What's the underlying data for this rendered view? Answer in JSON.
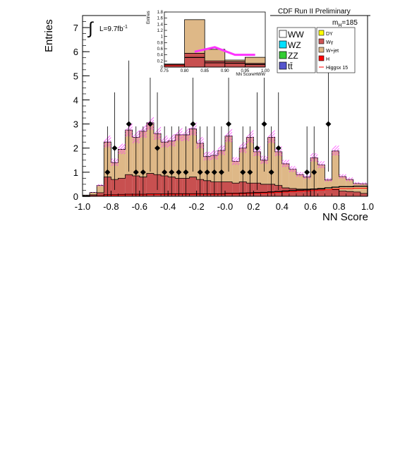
{
  "header": {
    "title": "CDF Run II Preliminary",
    "mass_label": "m",
    "mass_sub": "H",
    "mass_value": "=185",
    "lumi_label": "L=9.7fb",
    "lumi_exp": "-1"
  },
  "legend": {
    "left": [
      {
        "label": "WW",
        "color": "#ffffff"
      },
      {
        "label": "WZ",
        "color": "#00e0ff"
      },
      {
        "label": "ZZ",
        "color": "#33cc33"
      },
      {
        "label": "tt̄",
        "color": "#5555cc"
      }
    ],
    "right": [
      {
        "label": "DY",
        "color": "#ffff00",
        "type": "box"
      },
      {
        "label": "Wγ",
        "color": "#cc5555",
        "type": "box"
      },
      {
        "label": "W+jet",
        "color": "#deb887",
        "type": "box"
      },
      {
        "label": "H",
        "color": "#ff0000",
        "type": "box"
      },
      {
        "label": "Higgsx 15",
        "color": "#ff0000",
        "type": "line"
      }
    ]
  },
  "colors": {
    "wjet": "#deb887",
    "wgamma": "#c85050",
    "higgs": "#ff0000",
    "uncertainty": "#ff33ff",
    "data": "#000000"
  },
  "chart_data": {
    "type": "bar",
    "xlabel": "NN Score",
    "ylabel": "Entries",
    "xlim": [
      -1.0,
      1.0
    ],
    "ylim": [
      0,
      7.5
    ],
    "x_ticks": [
      "-1.0",
      "-0.8",
      "-0.6",
      "-0.4",
      "-0.2",
      "-0.0",
      "0.2",
      "0.4",
      "0.6",
      "0.8",
      "1.0"
    ],
    "y_ticks": [
      "0",
      "1",
      "2",
      "3",
      "4",
      "5",
      "6",
      "7"
    ],
    "bin_edges": [
      -1.0,
      -0.95,
      -0.9,
      -0.85,
      -0.8,
      -0.75,
      -0.7,
      -0.65,
      -0.6,
      -0.55,
      -0.5,
      -0.45,
      -0.4,
      -0.35,
      -0.3,
      -0.25,
      -0.2,
      -0.15,
      -0.1,
      -0.05,
      0.0,
      0.05,
      0.1,
      0.15,
      0.2,
      0.25,
      0.3,
      0.35,
      0.4,
      0.45,
      0.5,
      0.55,
      0.6,
      0.65,
      0.7,
      0.75,
      0.8,
      0.85,
      0.9,
      0.95,
      1.0
    ],
    "series": [
      {
        "name": "Wγ",
        "values": [
          0.02,
          0.06,
          0.15,
          0.8,
          0.7,
          0.75,
          0.9,
          0.85,
          0.8,
          0.95,
          0.9,
          0.85,
          0.8,
          0.75,
          0.75,
          0.8,
          0.7,
          0.65,
          0.6,
          0.6,
          0.6,
          0.55,
          0.6,
          0.55,
          0.55,
          0.5,
          0.5,
          0.45,
          0.35,
          0.32,
          0.3,
          0.3,
          0.3,
          0.3,
          0.28,
          0.28,
          0.22,
          0.2,
          0.18,
          0.12
        ]
      },
      {
        "name": "W+jet",
        "values": [
          0.03,
          0.1,
          0.3,
          1.45,
          0.7,
          1.2,
          1.85,
          1.6,
          1.9,
          2.1,
          1.7,
          1.4,
          1.5,
          1.8,
          1.8,
          2.0,
          1.5,
          1.0,
          1.1,
          1.3,
          1.9,
          0.9,
          1.4,
          1.9,
          1.3,
          1.0,
          1.95,
          1.4,
          1.0,
          0.8,
          0.6,
          0.5,
          1.3,
          1.0,
          0.4,
          1.6,
          0.6,
          0.5,
          0.35,
          0.4
        ]
      },
      {
        "name": "H",
        "values": [
          0.0,
          0.01,
          0.02,
          0.06,
          0.06,
          0.07,
          0.08,
          0.08,
          0.08,
          0.09,
          0.09,
          0.09,
          0.1,
          0.1,
          0.1,
          0.1,
          0.1,
          0.1,
          0.1,
          0.1,
          0.12,
          0.12,
          0.13,
          0.14,
          0.15,
          0.16,
          0.18,
          0.2,
          0.22,
          0.24,
          0.26,
          0.27,
          0.3,
          0.32,
          0.35,
          0.38,
          0.4,
          0.4,
          0.42,
          0.42
        ]
      }
    ],
    "data_points": {
      "x": [
        -0.825,
        -0.775,
        -0.675,
        -0.625,
        -0.575,
        -0.525,
        -0.475,
        -0.425,
        -0.375,
        -0.325,
        -0.275,
        -0.225,
        -0.175,
        -0.125,
        -0.075,
        -0.025,
        0.025,
        0.125,
        0.175,
        0.225,
        0.275,
        0.325,
        0.375,
        0.575,
        0.625,
        0.725,
        0.775
      ],
      "y": [
        1,
        2,
        3,
        1,
        1,
        3,
        2,
        1,
        1,
        1,
        1,
        3,
        1,
        1,
        1,
        1,
        3,
        1,
        1,
        2,
        3,
        1,
        2,
        1,
        1,
        3,
        0.0
      ]
    },
    "inset": {
      "xlabel": "NN ScoreHWW",
      "ylabel": "Entries",
      "xlim": [
        0.75,
        1.0
      ],
      "ylim": [
        0,
        1.8
      ],
      "x_ticks": [
        "0.75",
        "0.80",
        "0.85",
        "0.90",
        "0.95",
        "1.00"
      ],
      "y_ticks": [
        "0",
        "0.2",
        "0.4",
        "0.6",
        "0.8",
        "1",
        "1.2",
        "1.4",
        "1.6",
        "1.8"
      ],
      "bin_edges": [
        0.75,
        0.8,
        0.85,
        0.9,
        0.95,
        1.0
      ],
      "wgamma": [
        0.1,
        0.45,
        0.2,
        0.18,
        0.12
      ],
      "wjet": [
        0.0,
        1.1,
        0.38,
        0.05,
        0.2
      ],
      "data_y": [
        0.0,
        0.5,
        0.65,
        0.4,
        0.4
      ]
    }
  }
}
